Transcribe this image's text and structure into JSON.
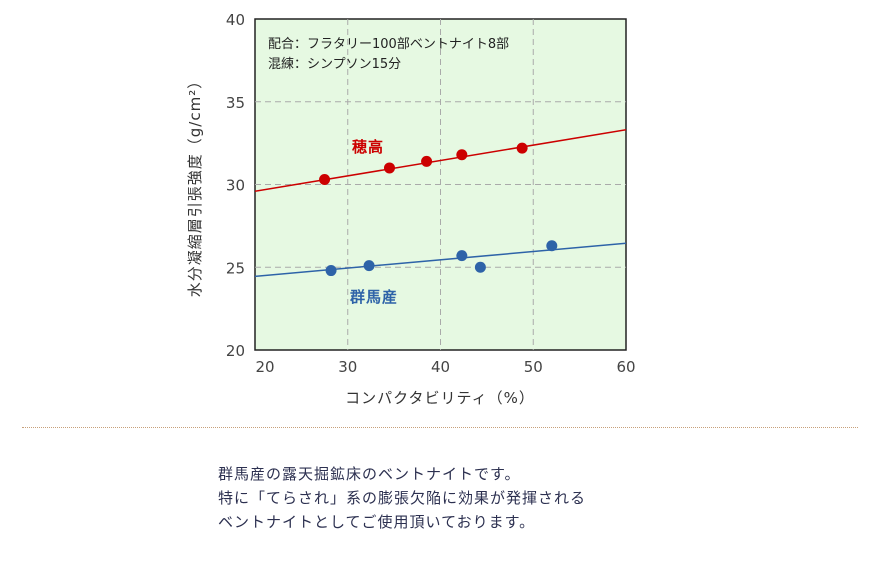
{
  "chart_data": {
    "type": "scatter",
    "xlabel": "コンパクタビリティ（%）",
    "ylabel": "水分凝縮層引張強度（g/cm²）",
    "xlim": [
      20,
      60
    ],
    "ylim": [
      20,
      40
    ],
    "xticks": [
      20,
      30,
      40,
      50,
      60
    ],
    "yticks": [
      20,
      25,
      30,
      35,
      40
    ],
    "grid": true,
    "annotations": [
      "配合：フラタリー100部ベントナイト8部",
      "混練：シンプソン15分"
    ],
    "series": [
      {
        "name": "穂高",
        "color": "#cc0000",
        "x": [
          27.5,
          34.5,
          38.5,
          42.3,
          48.8
        ],
        "y": [
          30.3,
          31.0,
          31.4,
          31.8,
          32.2
        ],
        "trend": [
          [
            19,
            29.5
          ],
          [
            61,
            33.4
          ]
        ]
      },
      {
        "name": "群馬産",
        "color": "#2e63a8",
        "x": [
          28.2,
          32.3,
          42.3,
          44.3,
          52.0
        ],
        "y": [
          24.8,
          25.1,
          25.7,
          25.0,
          26.3
        ],
        "trend": [
          [
            19,
            24.4
          ],
          [
            61,
            26.5
          ]
        ]
      }
    ]
  },
  "description": [
    "群馬産の露天掘鉱床のベントナイトです。",
    "特に「てらされ」系の膨張欠陥に効果が発揮される",
    "ベントナイトとしてご使用頂いております。"
  ]
}
